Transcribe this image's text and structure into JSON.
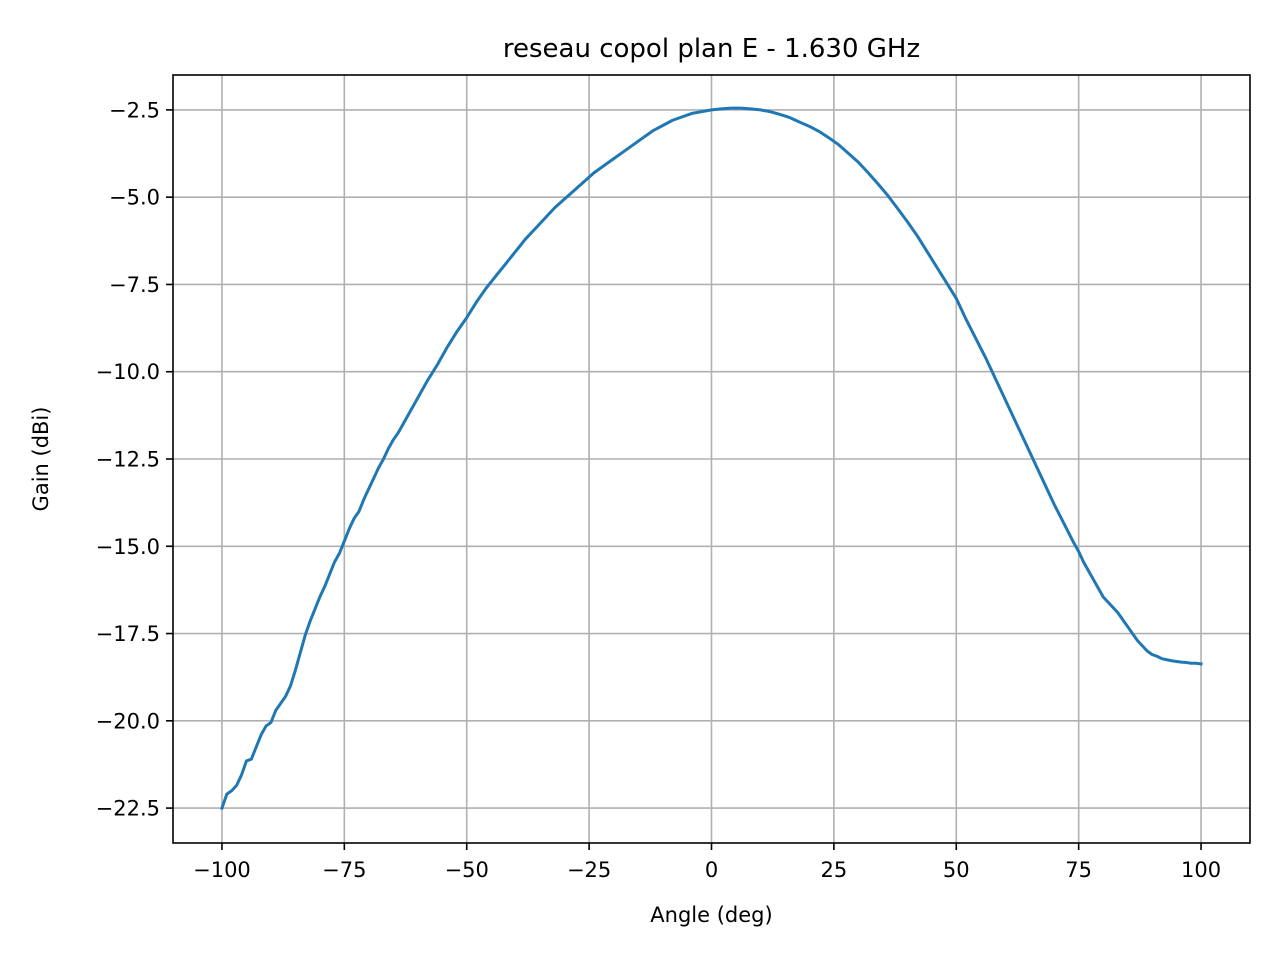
{
  "chart_data": {
    "type": "line",
    "title": "reseau copol plan E - 1.630 GHz",
    "xlabel": "Angle (deg)",
    "ylabel": "Gain (dBi)",
    "xlim": [
      -110,
      110
    ],
    "ylim": [
      -23.5,
      -1.5
    ],
    "xticks": [
      -100,
      -75,
      -50,
      -25,
      0,
      25,
      50,
      75,
      100
    ],
    "xtick_labels": [
      "−100",
      "−75",
      "−50",
      "−25",
      "0",
      "25",
      "50",
      "75",
      "100"
    ],
    "yticks": [
      -2.5,
      -5.0,
      -7.5,
      -10.0,
      -12.5,
      -15.0,
      -17.5,
      -20.0,
      -22.5
    ],
    "ytick_labels": [
      "−2.5",
      "−5.0",
      "−7.5",
      "−10.0",
      "−12.5",
      "−15.0",
      "−17.5",
      "−20.0",
      "−22.5"
    ],
    "grid": true,
    "series": [
      {
        "color": "#1f77b4",
        "x": [
          -100,
          -99,
          -98,
          -97,
          -96,
          -95,
          -94,
          -93,
          -92,
          -91,
          -90,
          -89,
          -88,
          -87,
          -86,
          -85,
          -84,
          -83,
          -82,
          -81,
          -80,
          -79,
          -78,
          -77,
          -76,
          -75,
          -74,
          -73,
          -72,
          -71,
          -70,
          -69,
          -68,
          -67,
          -66,
          -65,
          -64,
          -63,
          -62,
          -61,
          -60,
          -58,
          -56,
          -54,
          -52,
          -50,
          -48,
          -46,
          -44,
          -42,
          -40,
          -38,
          -36,
          -34,
          -32,
          -30,
          -28,
          -26,
          -24,
          -22,
          -20,
          -18,
          -16,
          -14,
          -12,
          -10,
          -8,
          -6,
          -4,
          -2,
          0,
          2,
          4,
          6,
          8,
          10,
          12,
          14,
          16,
          18,
          20,
          22,
          24,
          26,
          28,
          30,
          32,
          34,
          36,
          38,
          40,
          42,
          44,
          46,
          48,
          50,
          52,
          54,
          56,
          58,
          60,
          62,
          64,
          66,
          68,
          70,
          72,
          74,
          75,
          76,
          77,
          78,
          79,
          80,
          81,
          82,
          83,
          84,
          85,
          86,
          87,
          88,
          89,
          90,
          91,
          92,
          93,
          94,
          95,
          96,
          97,
          98,
          99,
          100
        ],
        "y": [
          -22.5,
          -22.1,
          -22.0,
          -21.85,
          -21.55,
          -21.15,
          -21.1,
          -20.75,
          -20.4,
          -20.15,
          -20.05,
          -19.7,
          -19.5,
          -19.3,
          -19.0,
          -18.55,
          -18.05,
          -17.55,
          -17.15,
          -16.8,
          -16.45,
          -16.15,
          -15.8,
          -15.45,
          -15.2,
          -14.85,
          -14.5,
          -14.2,
          -14.0,
          -13.65,
          -13.35,
          -13.05,
          -12.75,
          -12.5,
          -12.2,
          -11.95,
          -11.75,
          -11.5,
          -11.25,
          -11.0,
          -10.75,
          -10.25,
          -9.8,
          -9.3,
          -8.85,
          -8.45,
          -8.0,
          -7.6,
          -7.25,
          -6.9,
          -6.55,
          -6.2,
          -5.9,
          -5.6,
          -5.3,
          -5.05,
          -4.8,
          -4.55,
          -4.3,
          -4.1,
          -3.9,
          -3.7,
          -3.5,
          -3.3,
          -3.1,
          -2.95,
          -2.8,
          -2.7,
          -2.6,
          -2.55,
          -2.5,
          -2.47,
          -2.45,
          -2.45,
          -2.47,
          -2.5,
          -2.55,
          -2.63,
          -2.72,
          -2.85,
          -2.97,
          -3.12,
          -3.3,
          -3.5,
          -3.75,
          -4.0,
          -4.3,
          -4.62,
          -4.95,
          -5.32,
          -5.7,
          -6.1,
          -6.55,
          -7.0,
          -7.45,
          -7.9,
          -8.5,
          -9.05,
          -9.6,
          -10.2,
          -10.8,
          -11.4,
          -12.0,
          -12.6,
          -13.2,
          -13.8,
          -14.35,
          -14.9,
          -15.15,
          -15.45,
          -15.7,
          -15.95,
          -16.2,
          -16.45,
          -16.6,
          -16.75,
          -16.9,
          -17.1,
          -17.3,
          -17.5,
          -17.7,
          -17.85,
          -18.0,
          -18.1,
          -18.15,
          -18.22,
          -18.25,
          -18.28,
          -18.3,
          -18.32,
          -18.33,
          -18.35,
          -18.35,
          -18.37
        ]
      }
    ]
  }
}
